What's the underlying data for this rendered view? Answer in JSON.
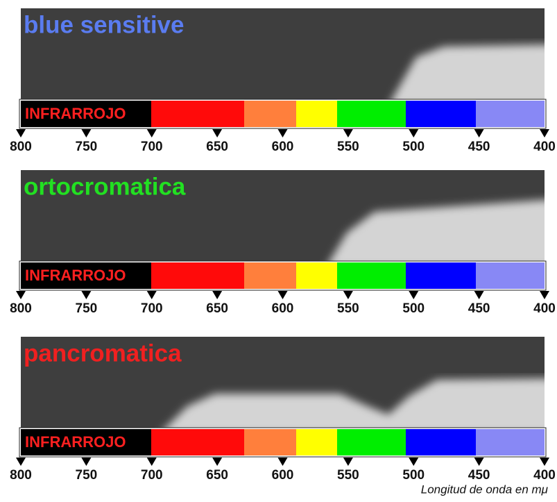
{
  "panels": [
    {
      "title": "blue sensitive",
      "color": "#5a7cf0"
    },
    {
      "title": "ortocromatica",
      "color": "#22e022"
    },
    {
      "title": "pancromatica",
      "color": "#f02020"
    }
  ],
  "band_label": "INFRARROJO",
  "scale_ticks": [
    "800",
    "750",
    "700",
    "650",
    "600",
    "550",
    "500",
    "450",
    "400"
  ],
  "caption": "Longitud de onda en mμ"
}
